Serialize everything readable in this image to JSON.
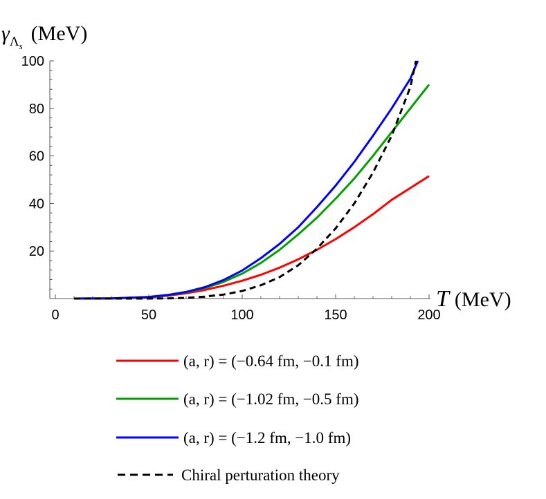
{
  "chart_data": {
    "type": "line",
    "ylabel_symbol": "γ",
    "ylabel_subscript": "Λ",
    "ylabel_subsubscript": "s",
    "ylabel_unit": "(MeV)",
    "xlabel_symbol": "T",
    "xlabel_unit": "(MeV)",
    "xlim": [
      0,
      200
    ],
    "ylim": [
      0,
      100
    ],
    "x_ticks": [
      0,
      50,
      100,
      150,
      200
    ],
    "y_ticks": [
      20,
      40,
      60,
      80,
      100
    ],
    "grid": false,
    "legend_position": "bottom",
    "series": [
      {
        "name": "(a, r) = (−0.64  fm, −0.1  fm)",
        "color": "#ff0000",
        "dash": "solid",
        "x": [
          10,
          30,
          50,
          60,
          70,
          80,
          90,
          100,
          110,
          120,
          130,
          140,
          150,
          160,
          170,
          180,
          190,
          200
        ],
        "y": [
          0,
          0.1,
          0.5,
          1.2,
          2.2,
          3.6,
          5.4,
          7.5,
          10,
          13,
          16.5,
          20.5,
          25,
          30,
          35.5,
          41.5,
          46.5,
          51.5
        ]
      },
      {
        "name": "(a, r) = (−1.02  fm, −0.5  fm)",
        "color": "#00a000",
        "dash": "solid",
        "x": [
          10,
          30,
          50,
          60,
          70,
          80,
          90,
          100,
          110,
          120,
          130,
          140,
          150,
          160,
          170,
          180,
          190,
          200
        ],
        "y": [
          0,
          0.1,
          0.6,
          1.4,
          2.6,
          4.4,
          7,
          10.5,
          15,
          20.5,
          27,
          34,
          42,
          50.5,
          60,
          70,
          80,
          90
        ]
      },
      {
        "name": "(a, r) = (−1.2  fm, −1.0  fm)",
        "color": "#0000ff",
        "dash": "solid",
        "x": [
          10,
          30,
          50,
          60,
          70,
          80,
          90,
          100,
          110,
          120,
          130,
          140,
          150,
          160,
          170,
          180,
          190,
          194
        ],
        "y": [
          0,
          0.1,
          0.7,
          1.5,
          2.8,
          4.8,
          7.8,
          11.8,
          17,
          23,
          30,
          38.5,
          47.5,
          57.5,
          68.5,
          80,
          92.5,
          100
        ]
      },
      {
        "name": "Chiral perturation theory",
        "color": "#000000",
        "dash": "dashed",
        "x": [
          10,
          50,
          60,
          70,
          80,
          90,
          100,
          110,
          120,
          130,
          140,
          150,
          160,
          170,
          180,
          190,
          193
        ],
        "y": [
          0,
          0,
          0.1,
          0.3,
          0.8,
          1.7,
          3.2,
          5.6,
          9,
          14,
          21,
          29.5,
          40,
          53,
          68.5,
          89,
          100
        ]
      }
    ]
  }
}
